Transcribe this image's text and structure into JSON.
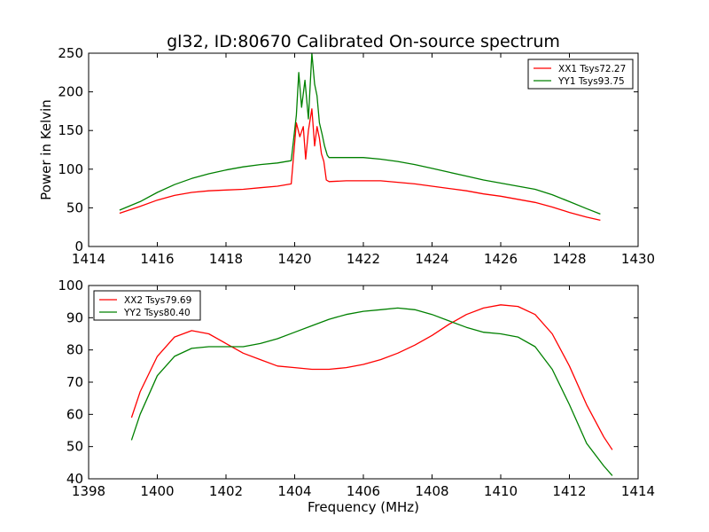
{
  "figure": {
    "title": "gl32, ID:80670 Calibrated On-source spectrum"
  },
  "chart_data": [
    {
      "type": "line",
      "title": "gl32, ID:80670 Calibrated On-source spectrum",
      "xlabel": "",
      "ylabel": "Power in Kelvin",
      "xlim": [
        1414,
        1430
      ],
      "ylim": [
        0,
        250
      ],
      "xticks": [
        "1414",
        "1416",
        "1418",
        "1420",
        "1422",
        "1424",
        "1426",
        "1428",
        "1430"
      ],
      "yticks": [
        "0",
        "50",
        "100",
        "150",
        "200",
        "250"
      ],
      "legend": "top-right",
      "grid": false,
      "series": [
        {
          "name": "XX1 Tsys72.27",
          "color": "#ff0000",
          "x": [
            1414.9,
            1415.5,
            1416.0,
            1416.5,
            1417.0,
            1417.5,
            1418.0,
            1418.5,
            1419.0,
            1419.5,
            1419.9,
            1420.05,
            1420.15,
            1420.25,
            1420.32,
            1420.4,
            1420.5,
            1420.58,
            1420.65,
            1420.72,
            1420.78,
            1420.85,
            1420.92,
            1421.0,
            1421.5,
            1422.0,
            1422.5,
            1423.0,
            1423.5,
            1424.0,
            1424.5,
            1425.0,
            1425.5,
            1426.0,
            1426.5,
            1427.0,
            1427.5,
            1428.0,
            1428.5,
            1428.9
          ],
          "y": [
            43,
            52,
            60,
            66,
            70,
            72,
            73,
            74,
            76,
            78,
            81,
            160,
            142,
            155,
            113,
            150,
            178,
            130,
            155,
            140,
            120,
            110,
            86,
            84,
            85,
            85,
            85,
            83,
            81,
            78,
            75,
            72,
            68,
            65,
            61,
            57,
            51,
            44,
            38,
            34
          ]
        },
        {
          "name": "YY1 Tsys93.75",
          "color": "#008000",
          "x": [
            1414.9,
            1415.5,
            1416.0,
            1416.5,
            1417.0,
            1417.5,
            1418.0,
            1418.5,
            1419.0,
            1419.5,
            1419.9,
            1420.05,
            1420.12,
            1420.2,
            1420.3,
            1420.4,
            1420.5,
            1420.58,
            1420.65,
            1420.72,
            1420.8,
            1420.87,
            1420.95,
            1421.0,
            1421.5,
            1422.0,
            1422.5,
            1423.0,
            1423.5,
            1424.0,
            1424.5,
            1425.0,
            1425.5,
            1426.0,
            1426.5,
            1427.0,
            1427.5,
            1428.0,
            1428.5,
            1428.9
          ],
          "y": [
            47,
            58,
            70,
            80,
            88,
            94,
            99,
            103,
            106,
            108,
            111,
            170,
            225,
            180,
            215,
            165,
            250,
            210,
            195,
            160,
            145,
            130,
            118,
            115,
            115,
            115,
            113,
            110,
            106,
            101,
            96,
            91,
            86,
            82,
            78,
            74,
            67,
            58,
            49,
            42
          ]
        }
      ]
    },
    {
      "type": "line",
      "title": "",
      "xlabel": "Frequency (MHz)",
      "ylabel": "",
      "xlim": [
        1398,
        1414
      ],
      "ylim": [
        40,
        100
      ],
      "xticks": [
        "1398",
        "1400",
        "1402",
        "1404",
        "1406",
        "1408",
        "1410",
        "1412",
        "1414"
      ],
      "yticks": [
        "40",
        "50",
        "60",
        "70",
        "80",
        "90",
        "100"
      ],
      "legend": "top-left",
      "grid": false,
      "series": [
        {
          "name": "XX2 Tsys79.69",
          "color": "#ff0000",
          "x": [
            1399.25,
            1399.5,
            1400.0,
            1400.5,
            1401.0,
            1401.5,
            1402.0,
            1402.5,
            1403.0,
            1403.5,
            1404.0,
            1404.5,
            1405.0,
            1405.5,
            1406.0,
            1406.5,
            1407.0,
            1407.5,
            1408.0,
            1408.5,
            1409.0,
            1409.5,
            1410.0,
            1410.5,
            1411.0,
            1411.5,
            1412.0,
            1412.5,
            1413.0,
            1413.25
          ],
          "y": [
            59,
            67,
            78,
            84,
            86,
            85,
            82,
            79,
            77,
            75,
            74.5,
            74,
            74,
            74.5,
            75.5,
            77,
            79,
            81.5,
            84.5,
            88,
            91,
            93,
            94,
            93.5,
            91,
            85,
            75,
            63,
            53,
            49
          ]
        },
        {
          "name": "YY2 Tsys80.40",
          "color": "#008000",
          "x": [
            1399.25,
            1399.5,
            1400.0,
            1400.5,
            1401.0,
            1401.5,
            1402.0,
            1402.5,
            1403.0,
            1403.5,
            1404.0,
            1404.5,
            1405.0,
            1405.5,
            1406.0,
            1406.5,
            1407.0,
            1407.5,
            1408.0,
            1408.5,
            1409.0,
            1409.5,
            1410.0,
            1410.5,
            1411.0,
            1411.5,
            1412.0,
            1412.5,
            1413.0,
            1413.25
          ],
          "y": [
            52,
            60,
            72,
            78,
            80.5,
            81,
            81,
            81,
            82,
            83.5,
            85.5,
            87.5,
            89.5,
            91,
            92,
            92.5,
            93,
            92.5,
            91,
            89,
            87,
            85.5,
            85,
            84,
            81,
            74,
            63,
            51,
            44,
            41
          ]
        }
      ]
    }
  ]
}
